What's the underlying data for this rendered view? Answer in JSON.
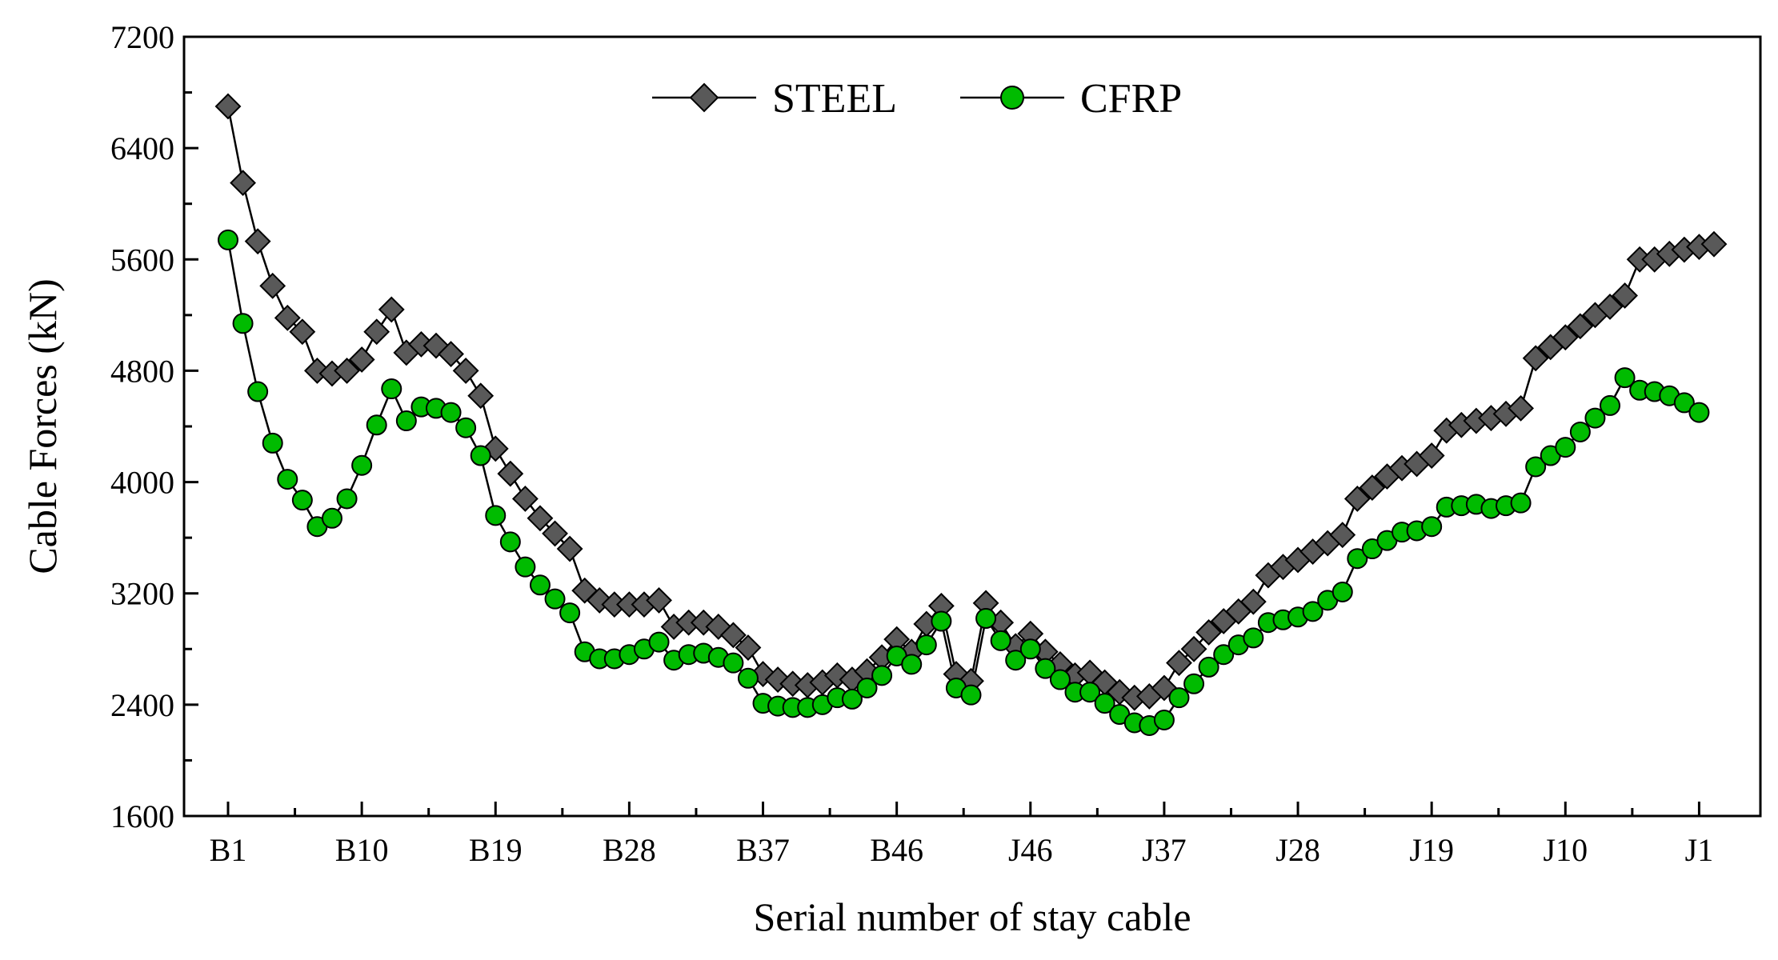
{
  "chart_data": {
    "type": "line",
    "xlabel": "Serial number of stay cable",
    "ylabel": "Cable Forces (kN)",
    "ylim": [
      1600,
      7200
    ],
    "yticks": [
      1600,
      2400,
      3200,
      4000,
      4800,
      5600,
      6400,
      7200
    ],
    "xticks": [
      {
        "index": 0,
        "label": "B1"
      },
      {
        "index": 9,
        "label": "B10"
      },
      {
        "index": 18,
        "label": "B19"
      },
      {
        "index": 27,
        "label": "B28"
      },
      {
        "index": 36,
        "label": "B37"
      },
      {
        "index": 45,
        "label": "B46"
      },
      {
        "index": 54,
        "label": "J46"
      },
      {
        "index": 63,
        "label": "J37"
      },
      {
        "index": 72,
        "label": "J28"
      },
      {
        "index": 81,
        "label": "J19"
      },
      {
        "index": 90,
        "label": "J10"
      },
      {
        "index": 99,
        "label": "J1"
      }
    ],
    "grid": false,
    "legend_position": "top-center",
    "series": [
      {
        "name": "STEEL",
        "marker": "diamond",
        "color": "#595959",
        "values": [
          6700,
          6150,
          5730,
          5410,
          5180,
          5080,
          4800,
          4780,
          4800,
          4880,
          5080,
          5240,
          4930,
          4990,
          4980,
          4920,
          4800,
          4620,
          4240,
          4060,
          3880,
          3740,
          3630,
          3520,
          3220,
          3150,
          3120,
          3120,
          3120,
          3150,
          2960,
          2990,
          2990,
          2960,
          2900,
          2810,
          2620,
          2580,
          2550,
          2540,
          2560,
          2610,
          2580,
          2640,
          2740,
          2870,
          2780,
          2980,
          3110,
          2620,
          2570,
          3130,
          2990,
          2820,
          2910,
          2780,
          2690,
          2610,
          2630,
          2560,
          2490,
          2450,
          2460,
          2520,
          2700,
          2800,
          2920,
          3000,
          3070,
          3140,
          3330,
          3390,
          3440,
          3500,
          3560,
          3620,
          3880,
          3960,
          4040,
          4100,
          4130,
          4190,
          4370,
          4410,
          4440,
          4460,
          4490,
          4530,
          4890,
          4970,
          5040,
          5120,
          5200,
          5260,
          5340,
          5600,
          5600,
          5640,
          5670,
          5690,
          5710
        ]
      },
      {
        "name": "CFRP",
        "marker": "circle",
        "color": "#00bb00",
        "values": [
          5740,
          5140,
          4650,
          4280,
          4020,
          3870,
          3680,
          3740,
          3880,
          4120,
          4410,
          4670,
          4440,
          4540,
          4530,
          4500,
          4390,
          4190,
          3760,
          3570,
          3390,
          3260,
          3160,
          3060,
          2780,
          2730,
          2730,
          2760,
          2800,
          2850,
          2720,
          2760,
          2770,
          2740,
          2700,
          2590,
          2410,
          2390,
          2380,
          2380,
          2400,
          2450,
          2440,
          2520,
          2610,
          2750,
          2690,
          2830,
          3000,
          2520,
          2470,
          3020,
          2860,
          2720,
          2800,
          2660,
          2580,
          2490,
          2490,
          2410,
          2330,
          2270,
          2250,
          2290,
          2450,
          2550,
          2670,
          2760,
          2830,
          2880,
          2990,
          3010,
          3030,
          3070,
          3150,
          3210,
          3450,
          3520,
          3580,
          3640,
          3650,
          3680,
          3820,
          3830,
          3840,
          3810,
          3830,
          3850,
          4110,
          4190,
          4250,
          4360,
          4460,
          4550,
          4750,
          4660,
          4650,
          4620,
          4570,
          4500
        ]
      }
    ]
  }
}
